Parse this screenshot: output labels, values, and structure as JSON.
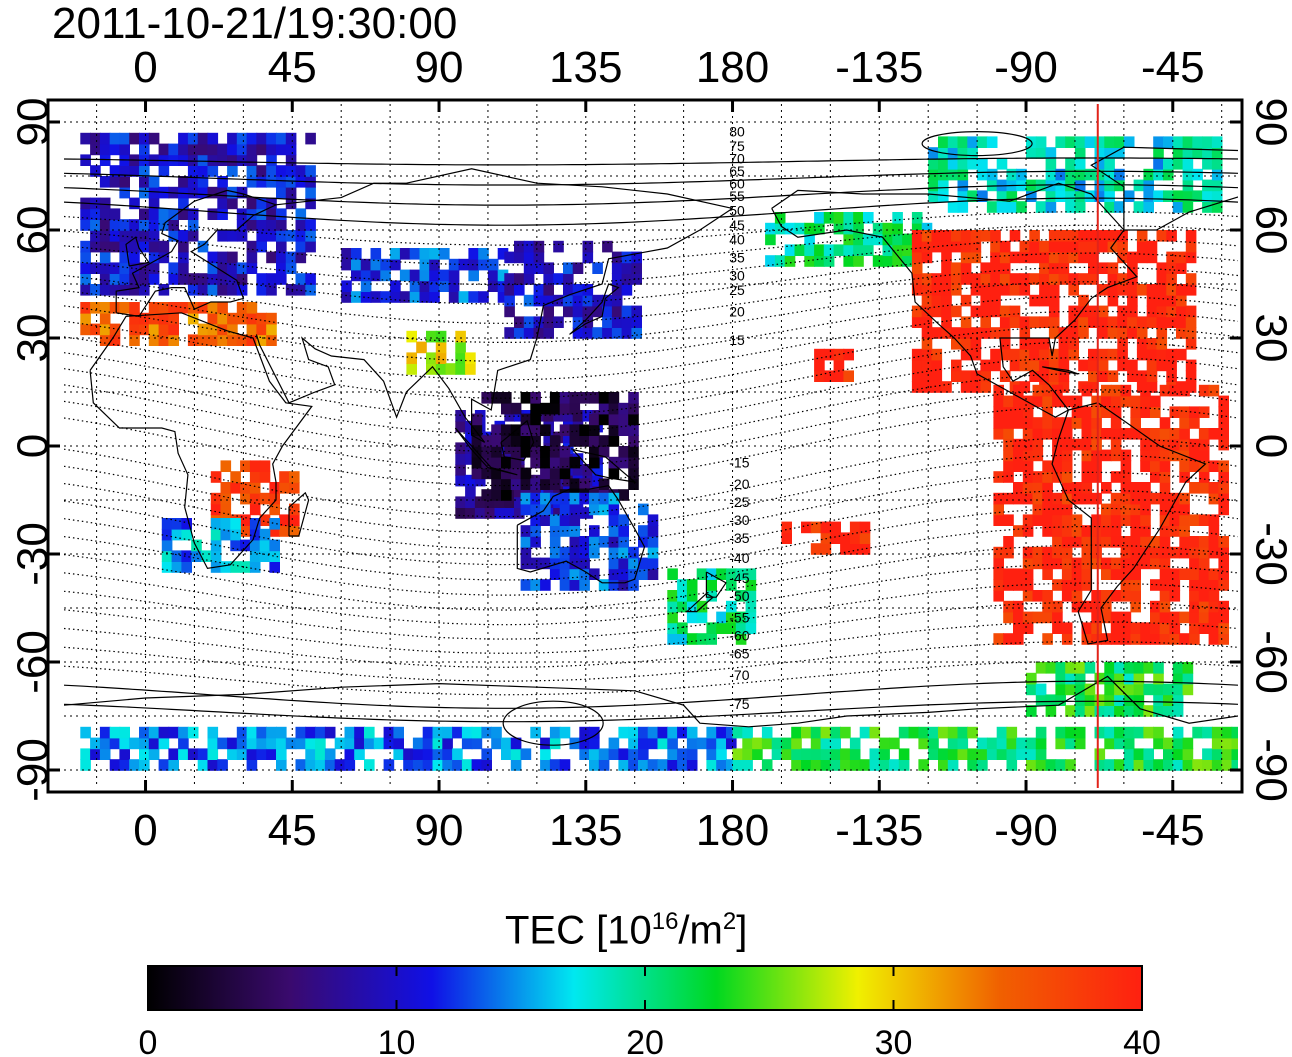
{
  "timestamp": "2011-10-21/19:30:00",
  "map": {
    "lon_min": -25,
    "lon_max": 335,
    "lat_min": -95,
    "lat_max": 95,
    "lon_tick_labels": [
      "0",
      "45",
      "90",
      "135",
      "180",
      "-135",
      "-90",
      "-45"
    ],
    "lon_tick_values": [
      0,
      45,
      90,
      135,
      180,
      225,
      270,
      315
    ],
    "lat_tick_labels": [
      "90",
      "60",
      "30",
      "0",
      "-30",
      "-60",
      "-90"
    ],
    "lat_tick_values": [
      90,
      60,
      30,
      0,
      -30,
      -60,
      -90
    ],
    "terminator_lon": 292,
    "terminator_color": "#e2231a",
    "magnetic_lat_labels": [
      "80",
      "75",
      "70",
      "65",
      "60",
      "55",
      "50",
      "45",
      "40",
      "35",
      "30",
      "25",
      "20",
      "15",
      "-15",
      "-20",
      "-25",
      "-30",
      "-35",
      "-40",
      "-45",
      "-50",
      "-55",
      "-60",
      "-65",
      "-70",
      "-75"
    ],
    "grid": true
  },
  "colorbar": {
    "title_main": "TEC  [10",
    "title_exp": "16",
    "title_mid": "/m",
    "title_exp2": "2",
    "title_end": "]",
    "min": 0,
    "max": 40,
    "tick_labels": [
      "0",
      "10",
      "20",
      "30",
      "40"
    ],
    "colors": [
      "#000000",
      "#3a0a6e",
      "#1010e6",
      "#00e8f0",
      "#00d820",
      "#f0f000",
      "#f06000",
      "#ff2010"
    ]
  },
  "chart_data": {
    "type": "heatmap",
    "title": "2011-10-21/19:30:00",
    "xlabel": "",
    "ylabel": "",
    "xlim": [
      -25,
      335
    ],
    "ylim": [
      -95,
      95
    ],
    "value_unit": "TEC [10^16/m^2]",
    "value_range": [
      0,
      40
    ],
    "regions": [
      {
        "lon": [
          -20,
          50
        ],
        "lat": [
          42,
          85
        ],
        "tec": 10
      },
      {
        "lon": [
          -20,
          40
        ],
        "lat": [
          28,
          38
        ],
        "tec": 35
      },
      {
        "lon": [
          20,
          45
        ],
        "lat": [
          -25,
          -5
        ],
        "tec": 38
      },
      {
        "lon": [
          5,
          40
        ],
        "lat": [
          -35,
          -20
        ],
        "tec": 15
      },
      {
        "lon": [
          60,
          110
        ],
        "lat": [
          40,
          55
        ],
        "tec": 12
      },
      {
        "lon": [
          80,
          100
        ],
        "lat": [
          20,
          30
        ],
        "tec": 28
      },
      {
        "lon": [
          95,
          140
        ],
        "lat": [
          -20,
          10
        ],
        "tec": 8
      },
      {
        "lon": [
          100,
          150
        ],
        "lat": [
          -15,
          15
        ],
        "tec": 3
      },
      {
        "lon": [
          110,
          150
        ],
        "lat": [
          30,
          55
        ],
        "tec": 10
      },
      {
        "lon": [
          115,
          155
        ],
        "lat": [
          -40,
          -15
        ],
        "tec": 12
      },
      {
        "lon": [
          160,
          185
        ],
        "lat": [
          -55,
          -35
        ],
        "tec": 20
      },
      {
        "lon": [
          195,
          225
        ],
        "lat": [
          -30,
          -22
        ],
        "tec": 40
      },
      {
        "lon": [
          205,
          215
        ],
        "lat": [
          18,
          25
        ],
        "tec": 40
      },
      {
        "lon": [
          190,
          240
        ],
        "lat": [
          50,
          65
        ],
        "tec": 20
      },
      {
        "lon": [
          240,
          330
        ],
        "lat": [
          65,
          85
        ],
        "tec": 18
      },
      {
        "lon": [
          235,
          320
        ],
        "lat": [
          15,
          60
        ],
        "tec": 40
      },
      {
        "lon": [
          260,
          330
        ],
        "lat": [
          -55,
          15
        ],
        "tec": 40
      },
      {
        "lon": [
          -20,
          180
        ],
        "lat": [
          -90,
          -78
        ],
        "tec": 14
      },
      {
        "lon": [
          180,
          335
        ],
        "lat": [
          -90,
          -78
        ],
        "tec": 22
      },
      {
        "lon": [
          270,
          320
        ],
        "lat": [
          -75,
          -62
        ],
        "tec": 22
      }
    ]
  }
}
